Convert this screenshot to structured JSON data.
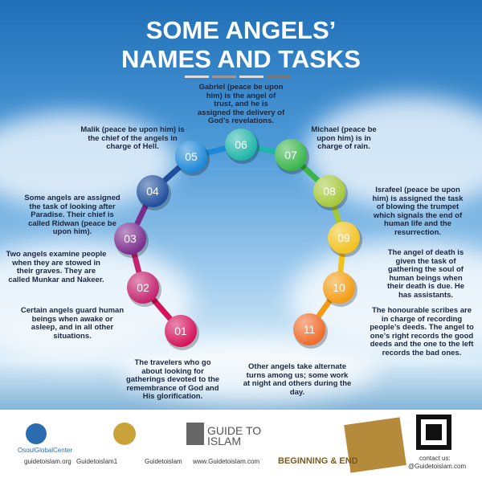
{
  "title": [
    "SOME ANGELS’",
    "NAMES AND TASKS"
  ],
  "items": [
    {
      "number": "01",
      "text": "The travelers who go about looking for gatherings devoted to the remembrance of God and His glorification."
    },
    {
      "number": "02",
      "text": "Certain angels guard human beings when awake or asleep, and in all other situations."
    },
    {
      "number": "03",
      "text": "Two angels examine people when they are stowed in their graves. They are called Munkar and Nakeer."
    },
    {
      "number": "04",
      "text": "Some angels are assigned the task of looking after Paradise. Their chief is called Ridwan (peace be upon him)."
    },
    {
      "number": "05",
      "text": "Malik (peace be upon him) is the chief of the angels in charge of Hell."
    },
    {
      "number": "06",
      "text": "Gabriel (peace be upon him) is the angel of trust, and he is assigned the delivery of God’s revelations."
    },
    {
      "number": "07",
      "text": "Michael (peace be upon him) is in charge of rain."
    },
    {
      "number": "08",
      "text": "Israfeel (peace be upon him) is assigned the task of blowing the trumpet which signals the end of human life and the resurrection."
    },
    {
      "number": "09",
      "text": "The angel of death is given the task of gathering the soul of human beings when their death is due. He has assistants."
    },
    {
      "number": "10",
      "text": "The honourable scribes are in charge of recording people’s deeds. The angel to one’s right records the good deeds and the one to the left records the bad ones."
    },
    {
      "number": "11",
      "text": "Other angels take alternate turns among us; some work at night and others during the day."
    }
  ],
  "footer": {
    "center": "OsoulGlobalCenter",
    "brand": "GUIDE TO ISLAM",
    "book": "BEGINNING & END",
    "links": [
      "guidetoislam.org",
      "Guidetoislam1",
      "Guidetoislam",
      "www.Guidetoislam.com"
    ],
    "contact": [
      "contact us:",
      "@Guidetoislam.com"
    ]
  }
}
